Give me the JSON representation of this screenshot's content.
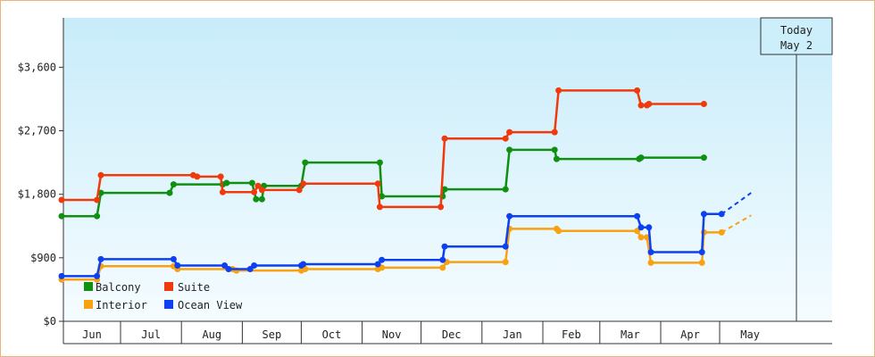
{
  "chart_data": {
    "type": "line",
    "title": "",
    "xlabel": "",
    "ylabel": "",
    "x_months": [
      "Jun",
      "Jul",
      "Aug",
      "Sep",
      "Oct",
      "Nov",
      "Dec",
      "Jan",
      "Feb",
      "Mar",
      "Apr",
      "May"
    ],
    "y_ticks": [
      "$0",
      "$900",
      "$1,800",
      "$2,700",
      "$3,600"
    ],
    "ylim": [
      0,
      4300
    ],
    "grid": false,
    "legend_position": "bottom-left",
    "today_marker": {
      "line1": "Today",
      "line2": "May 2",
      "date": "2024-05-02"
    },
    "series": [
      {
        "name": "Balcony",
        "color": "#109010",
        "points": [
          [
            "2023-06-01",
            1490
          ],
          [
            "2023-06-19",
            1490
          ],
          [
            "2023-06-21",
            1820
          ],
          [
            "2023-07-26",
            1820
          ],
          [
            "2023-07-28",
            1940
          ],
          [
            "2023-08-22",
            1940
          ],
          [
            "2023-08-24",
            1960
          ],
          [
            "2023-09-06",
            1960
          ],
          [
            "2023-09-08",
            1730
          ],
          [
            "2023-09-11",
            1730
          ],
          [
            "2023-09-12",
            1920
          ],
          [
            "2023-10-01",
            1920
          ],
          [
            "2023-10-03",
            2250
          ],
          [
            "2023-11-10",
            2250
          ],
          [
            "2023-11-11",
            1770
          ],
          [
            "2023-12-12",
            1770
          ],
          [
            "2023-12-13",
            1870
          ],
          [
            "2024-01-13",
            1870
          ],
          [
            "2024-01-15",
            2430
          ],
          [
            "2024-02-07",
            2430
          ],
          [
            "2024-02-08",
            2300
          ],
          [
            "2024-03-21",
            2300
          ],
          [
            "2024-03-22",
            2320
          ],
          [
            "2024-04-23",
            2320
          ]
        ]
      },
      {
        "name": "Suite",
        "color": "#f03a0c",
        "points": [
          [
            "2023-06-01",
            1720
          ],
          [
            "2023-06-19",
            1720
          ],
          [
            "2023-06-21",
            2070
          ],
          [
            "2023-08-07",
            2070
          ],
          [
            "2023-08-09",
            2050
          ],
          [
            "2023-08-21",
            2050
          ],
          [
            "2023-08-22",
            1830
          ],
          [
            "2023-09-07",
            1830
          ],
          [
            "2023-09-09",
            1920
          ],
          [
            "2023-09-11",
            1860
          ],
          [
            "2023-09-30",
            1860
          ],
          [
            "2023-10-02",
            1950
          ],
          [
            "2023-11-09",
            1950
          ],
          [
            "2023-11-10",
            1620
          ],
          [
            "2023-12-11",
            1620
          ],
          [
            "2023-12-13",
            2590
          ],
          [
            "2024-01-13",
            2590
          ],
          [
            "2024-01-15",
            2680
          ],
          [
            "2024-02-07",
            2680
          ],
          [
            "2024-02-09",
            3270
          ],
          [
            "2024-03-20",
            3270
          ],
          [
            "2024-03-22",
            3060
          ],
          [
            "2024-03-25",
            3060
          ],
          [
            "2024-03-26",
            3080
          ],
          [
            "2024-04-23",
            3080
          ]
        ]
      },
      {
        "name": "Interior",
        "color": "#f8a210",
        "points": [
          [
            "2023-06-01",
            590
          ],
          [
            "2023-06-19",
            590
          ],
          [
            "2023-06-21",
            780
          ],
          [
            "2023-07-28",
            780
          ],
          [
            "2023-07-30",
            740
          ],
          [
            "2023-08-27",
            740
          ],
          [
            "2023-08-29",
            720
          ],
          [
            "2023-10-01",
            720
          ],
          [
            "2023-10-03",
            740
          ],
          [
            "2023-11-09",
            740
          ],
          [
            "2023-11-11",
            760
          ],
          [
            "2023-12-12",
            760
          ],
          [
            "2023-12-14",
            840
          ],
          [
            "2024-01-13",
            840
          ],
          [
            "2024-01-15",
            1310
          ],
          [
            "2024-02-08",
            1310
          ],
          [
            "2024-02-09",
            1280
          ],
          [
            "2024-03-20",
            1280
          ],
          [
            "2024-03-22",
            1190
          ],
          [
            "2024-03-25",
            1190
          ],
          [
            "2024-03-27",
            830
          ],
          [
            "2024-04-22",
            830
          ],
          [
            "2024-04-23",
            1260
          ],
          [
            "2024-05-02",
            1260
          ]
        ]
      },
      {
        "name": "Ocean View",
        "color": "#0c40f0",
        "points": [
          [
            "2023-06-01",
            640
          ],
          [
            "2023-06-19",
            640
          ],
          [
            "2023-06-21",
            880
          ],
          [
            "2023-07-28",
            880
          ],
          [
            "2023-07-30",
            790
          ],
          [
            "2023-08-23",
            790
          ],
          [
            "2023-08-25",
            740
          ],
          [
            "2023-09-05",
            740
          ],
          [
            "2023-09-07",
            790
          ],
          [
            "2023-10-01",
            790
          ],
          [
            "2023-10-02",
            810
          ],
          [
            "2023-11-09",
            810
          ],
          [
            "2023-11-11",
            870
          ],
          [
            "2023-12-12",
            870
          ],
          [
            "2023-12-13",
            1060
          ],
          [
            "2024-01-13",
            1060
          ],
          [
            "2024-01-15",
            1490
          ],
          [
            "2024-03-20",
            1490
          ],
          [
            "2024-03-22",
            1330
          ],
          [
            "2024-03-26",
            1330
          ],
          [
            "2024-03-27",
            980
          ],
          [
            "2024-04-22",
            980
          ],
          [
            "2024-04-23",
            1520
          ],
          [
            "2024-05-02",
            1520
          ]
        ]
      }
    ],
    "projections": [
      {
        "series": "Ocean View",
        "from": [
          "2024-05-02",
          1520
        ],
        "to": [
          "2024-05-17",
          1820
        ]
      },
      {
        "series": "Interior",
        "from": [
          "2024-05-02",
          1260
        ],
        "to": [
          "2024-05-17",
          1500
        ]
      }
    ]
  }
}
